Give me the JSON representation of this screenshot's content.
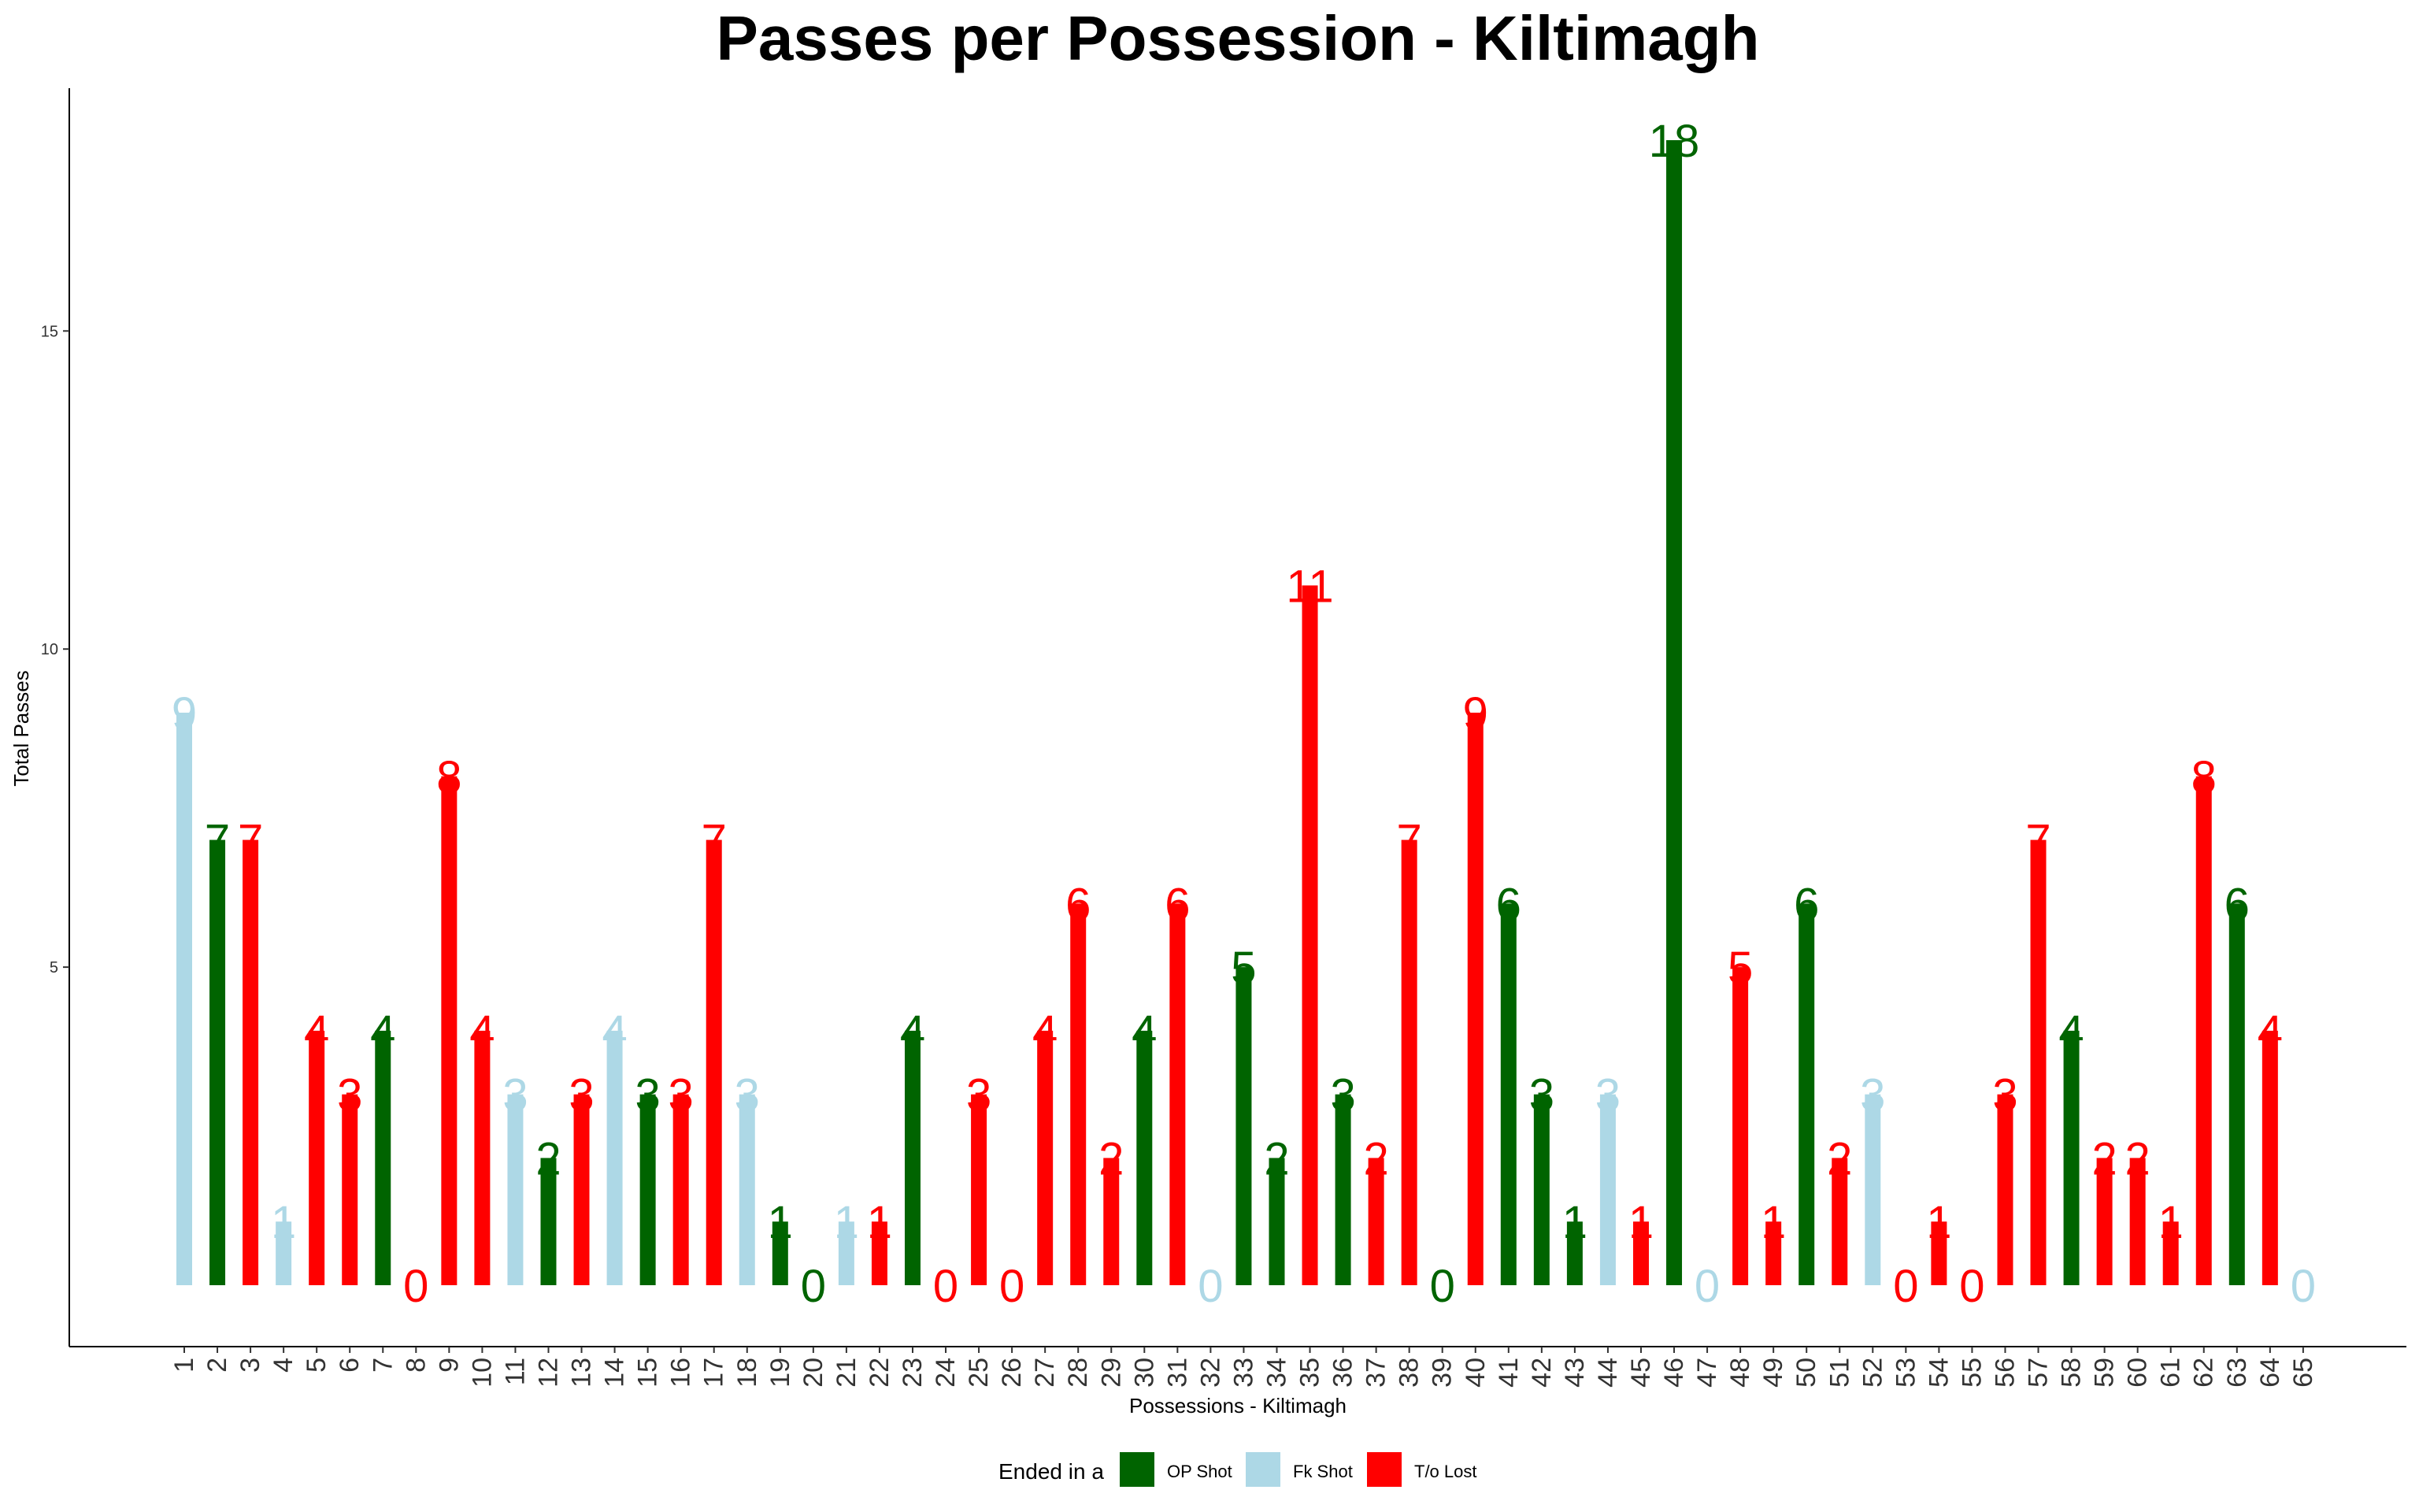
{
  "chart_data": {
    "type": "bar",
    "title": "Passes per Possession - Kiltimagh",
    "xlabel": "Possessions - Kiltimagh",
    "ylabel": "Total Passes",
    "ylim": [
      0,
      18.5
    ],
    "yticks": [
      5,
      10,
      15
    ],
    "grid": false,
    "legend": {
      "title": "Ended in a",
      "position": "bottom",
      "items": [
        {
          "key": "op",
          "label": "OP Shot",
          "color": "#006400"
        },
        {
          "key": "fk",
          "label": "Fk Shot",
          "color": "#ADD8E6"
        },
        {
          "key": "to",
          "label": "T/o Lost",
          "color": "#FF0000"
        }
      ]
    },
    "categories": [
      "1",
      "2",
      "3",
      "4",
      "5",
      "6",
      "7",
      "8",
      "9",
      "10",
      "11",
      "12",
      "13",
      "14",
      "15",
      "16",
      "17",
      "18",
      "19",
      "20",
      "21",
      "22",
      "23",
      "24",
      "25",
      "26",
      "27",
      "28",
      "29",
      "30",
      "31",
      "32",
      "33",
      "34",
      "35",
      "36",
      "37",
      "38",
      "39",
      "40",
      "41",
      "42",
      "43",
      "44",
      "45",
      "46",
      "47",
      "48",
      "49",
      "50",
      "51",
      "52",
      "53",
      "54",
      "55",
      "56",
      "57",
      "58",
      "59",
      "60",
      "61",
      "62",
      "63",
      "64",
      "65"
    ],
    "values": [
      9,
      7,
      7,
      1,
      4,
      3,
      4,
      0,
      8,
      4,
      3,
      2,
      3,
      4,
      3,
      3,
      7,
      3,
      1,
      0,
      1,
      1,
      4,
      0,
      3,
      0,
      4,
      6,
      2,
      4,
      6,
      0,
      5,
      2,
      11,
      3,
      2,
      7,
      0,
      9,
      6,
      3,
      1,
      3,
      1,
      18,
      0,
      5,
      1,
      6,
      2,
      3,
      0,
      1,
      0,
      3,
      7,
      4,
      2,
      2,
      1,
      8,
      6,
      4,
      0
    ],
    "outcomes": [
      "fk",
      "op",
      "to",
      "fk",
      "to",
      "to",
      "op",
      "to",
      "to",
      "to",
      "fk",
      "op",
      "to",
      "fk",
      "op",
      "to",
      "to",
      "fk",
      "op",
      "op",
      "fk",
      "to",
      "op",
      "to",
      "to",
      "to",
      "to",
      "to",
      "to",
      "op",
      "to",
      "fk",
      "op",
      "op",
      "to",
      "op",
      "to",
      "to",
      "op",
      "to",
      "op",
      "op",
      "op",
      "fk",
      "to",
      "op",
      "fk",
      "to",
      "to",
      "op",
      "to",
      "fk",
      "to",
      "to",
      "to",
      "to",
      "to",
      "op",
      "to",
      "to",
      "to",
      "to",
      "op",
      "to",
      "fk"
    ]
  }
}
